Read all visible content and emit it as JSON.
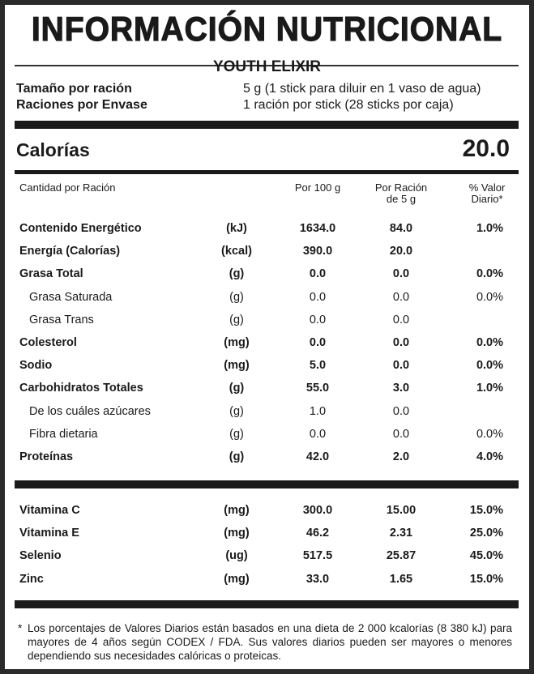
{
  "title": "INFORMACIÓN NUTRICIONAL",
  "product": "YOUTH ELIXIR",
  "serving": [
    {
      "label": "Tamaño por ración",
      "value": "5 g (1 stick para diluir en 1 vaso de agua)"
    },
    {
      "label": "Raciones por Envase",
      "value": "1 ración por stick (28 sticks por caja)"
    }
  ],
  "calories": {
    "label": "Calorías",
    "value": "20.0"
  },
  "columns": {
    "amount": "Cantidad por Ración",
    "per100": "Por 100 g",
    "per_serving_1": "Por Ración",
    "per_serving_2": "de 5 g",
    "dv_1": "% Valor",
    "dv_2": "Diario*"
  },
  "nutrients": [
    {
      "name": "Contenido Energético",
      "unit": "(kJ)",
      "per100": "1634.0",
      "per_serving": "84.0",
      "dv": "1.0%",
      "bold": true
    },
    {
      "name": "Energía (Calorías)",
      "unit": "(kcal)",
      "per100": "390.0",
      "per_serving": "20.0",
      "dv": "",
      "bold": true
    },
    {
      "name": "Grasa Total",
      "unit": "(g)",
      "per100": "0.0",
      "per_serving": "0.0",
      "dv": "0.0%",
      "bold": true
    },
    {
      "name": "Grasa Saturada",
      "unit": "(g)",
      "per100": "0.0",
      "per_serving": "0.0",
      "dv": "0.0%",
      "bold": false
    },
    {
      "name": "Grasa Trans",
      "unit": "(g)",
      "per100": "0.0",
      "per_serving": "0.0",
      "dv": "",
      "bold": false
    },
    {
      "name": "Colesterol",
      "unit": "(mg)",
      "per100": "0.0",
      "per_serving": "0.0",
      "dv": "0.0%",
      "bold": true
    },
    {
      "name": "Sodio",
      "unit": "(mg)",
      "per100": "5.0",
      "per_serving": "0.0",
      "dv": "0.0%",
      "bold": true
    },
    {
      "name": "Carbohidratos Totales",
      "unit": "(g)",
      "per100": "55.0",
      "per_serving": "3.0",
      "dv": "1.0%",
      "bold": true
    },
    {
      "name": "De los cuáles azúcares",
      "unit": "(g)",
      "per100": "1.0",
      "per_serving": "0.0",
      "dv": "",
      "bold": false
    },
    {
      "name": "Fibra dietaria",
      "unit": "(g)",
      "per100": "0.0",
      "per_serving": "0.0",
      "dv": "0.0%",
      "bold": false
    },
    {
      "name": "Proteínas",
      "unit": "(g)",
      "per100": "42.0",
      "per_serving": "2.0",
      "dv": "4.0%",
      "bold": true
    }
  ],
  "vitamins": [
    {
      "name": "Vitamina C",
      "unit": "(mg)",
      "per100": "300.0",
      "per_serving": "15.00",
      "dv": "15.0%",
      "bold": true
    },
    {
      "name": "Vitamina E",
      "unit": "(mg)",
      "per100": "46.2",
      "per_serving": "2.31",
      "dv": "25.0%",
      "bold": true
    },
    {
      "name": "Selenio",
      "unit": "(ug)",
      "per100": "517.5",
      "per_serving": "25.87",
      "dv": "45.0%",
      "bold": true
    },
    {
      "name": "Zinc",
      "unit": "(mg)",
      "per100": "33.0",
      "per_serving": "1.65",
      "dv": "15.0%",
      "bold": true
    }
  ],
  "footnote": {
    "star": "*",
    "text": "Los porcentajes de Valores Diarios están basados en una dieta de 2 000 kcalorías (8 380 kJ) para mayores de 4 años según CODEX / FDA. Sus valores diarios pueden ser mayores o menores dependiendo sus necesidades calóricas o proteicas."
  }
}
